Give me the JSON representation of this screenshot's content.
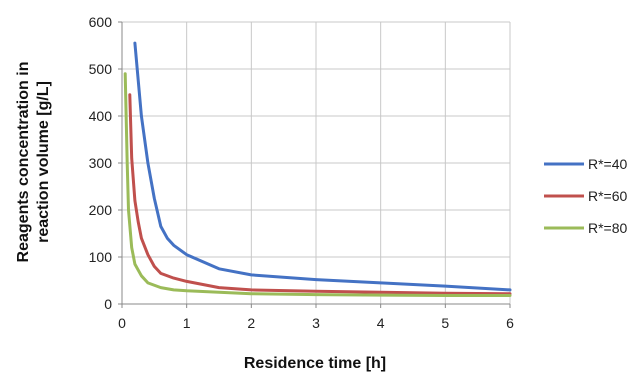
{
  "chart_data": {
    "type": "line",
    "title": "",
    "xlabel": "Residence time [h]",
    "ylabel_lines": [
      "Reagents concentration in",
      "reaction volume [g/L]"
    ],
    "xlim": [
      0,
      6
    ],
    "ylim": [
      0,
      600
    ],
    "xticks": [
      0,
      1,
      2,
      3,
      4,
      5,
      6
    ],
    "yticks": [
      0,
      100,
      200,
      300,
      400,
      500,
      600
    ],
    "grid": true,
    "legend_position": "right",
    "series": [
      {
        "name": "R*=40",
        "color": "#4472C4",
        "x": [
          0.2,
          0.3,
          0.4,
          0.5,
          0.6,
          0.7,
          0.8,
          1.0,
          1.5,
          2.0,
          3.0,
          4.0,
          5.0,
          6.0
        ],
        "y": [
          555,
          400,
          300,
          225,
          165,
          140,
          125,
          105,
          75,
          62,
          52,
          45,
          38,
          30
        ]
      },
      {
        "name": "R*=60",
        "color": "#C0504D",
        "x": [
          0.12,
          0.15,
          0.2,
          0.25,
          0.3,
          0.4,
          0.5,
          0.6,
          0.8,
          1.0,
          1.5,
          2.0,
          3.0,
          4.0,
          5.0,
          6.0
        ],
        "y": [
          445,
          310,
          220,
          175,
          140,
          105,
          80,
          65,
          55,
          48,
          35,
          30,
          27,
          25,
          23,
          22
        ]
      },
      {
        "name": "R*=80",
        "color": "#9BBB59",
        "x": [
          0.05,
          0.08,
          0.1,
          0.15,
          0.2,
          0.3,
          0.4,
          0.6,
          0.8,
          1.0,
          1.5,
          2.0,
          3.0,
          4.0,
          5.0,
          6.0
        ],
        "y": [
          490,
          300,
          200,
          120,
          85,
          60,
          45,
          35,
          30,
          28,
          25,
          22,
          20,
          19,
          18,
          18
        ]
      }
    ]
  }
}
